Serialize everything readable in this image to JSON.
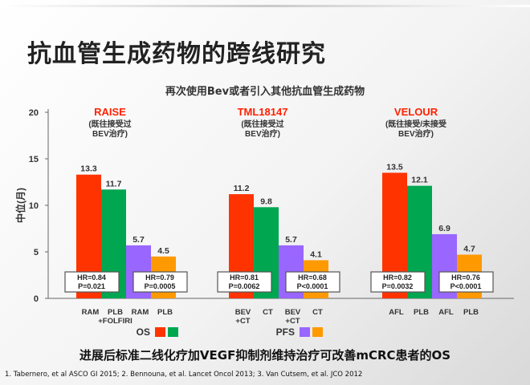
{
  "page": {
    "title": "抗血管生成药物的跨线研究",
    "conclusion": "进展后标准二线化疗加VEGF抑制剂维持治疗可改善mCRC患者的OS",
    "footnote": "1. Tabernero, et al ASCO GI 2015; 2. Bennouna, et al. Lancet Oncol 2013; 3. Van Cutsem, et al. JCO 2012"
  },
  "colors": {
    "os_treatment": "#ff3300",
    "os_control": "#00a650",
    "pfs_treatment": "#9966ff",
    "pfs_control": "#ff9900",
    "trial_title": "#ff2200",
    "box_border": "#555555"
  },
  "chart_data": {
    "type": "bar",
    "title": "再次使用Bev或者引入其他抗血管生成药物",
    "ylabel": "中位(月)",
    "ylim": [
      0,
      20
    ],
    "yticks": [
      0,
      5,
      10,
      15,
      20
    ],
    "legend": [
      {
        "label": "OS",
        "swatches": [
          "os_treatment",
          "os_control"
        ]
      },
      {
        "label": "PFS",
        "swatches": [
          "pfs_treatment",
          "pfs_control"
        ]
      }
    ],
    "groups": [
      {
        "name": "RAISE",
        "note": [
          "(既往接受过",
          "BEV治疗)"
        ],
        "bars": [
          {
            "label": "RAM",
            "value": 13.3,
            "kind": "os_treatment"
          },
          {
            "label": "PLB +FOLFIRI",
            "value": 11.7,
            "kind": "os_control"
          },
          {
            "label": "RAM",
            "value": 5.7,
            "kind": "pfs_treatment"
          },
          {
            "label": "PLB",
            "value": 4.5,
            "kind": "pfs_control"
          }
        ],
        "hr_boxes": [
          {
            "hr": "HR=0.84",
            "p": "P=0.021"
          },
          {
            "hr": "HR=0.79",
            "p": "P=0.0005"
          }
        ]
      },
      {
        "name": "TML18147",
        "note": [
          "(既往接受过",
          "BEV治疗)"
        ],
        "bars": [
          {
            "label": "BEV +CT",
            "value": 11.2,
            "kind": "os_treatment"
          },
          {
            "label": "CT",
            "value": 9.8,
            "kind": "os_control"
          },
          {
            "label": "BEV +CT",
            "value": 5.7,
            "kind": "pfs_treatment"
          },
          {
            "label": "CT",
            "value": 4.1,
            "kind": "pfs_control"
          }
        ],
        "hr_boxes": [
          {
            "hr": "HR=0.81",
            "p": "P=0.0062"
          },
          {
            "hr": "HR=0.68",
            "p": "P<0.0001"
          }
        ]
      },
      {
        "name": "VELOUR",
        "note": [
          "(既往接受/未接受",
          "BEV治疗)"
        ],
        "bars": [
          {
            "label": "AFL",
            "value": 13.5,
            "kind": "os_treatment"
          },
          {
            "label": "PLB",
            "value": 12.1,
            "kind": "os_control"
          },
          {
            "label": "AFL",
            "value": 6.9,
            "kind": "pfs_treatment"
          },
          {
            "label": "PLB",
            "value": 4.7,
            "kind": "pfs_control"
          }
        ],
        "hr_boxes": [
          {
            "hr": "HR=0.82",
            "p": "P=0.0032"
          },
          {
            "hr": "HR=0.76",
            "p": "P<0.0001"
          }
        ]
      }
    ]
  }
}
